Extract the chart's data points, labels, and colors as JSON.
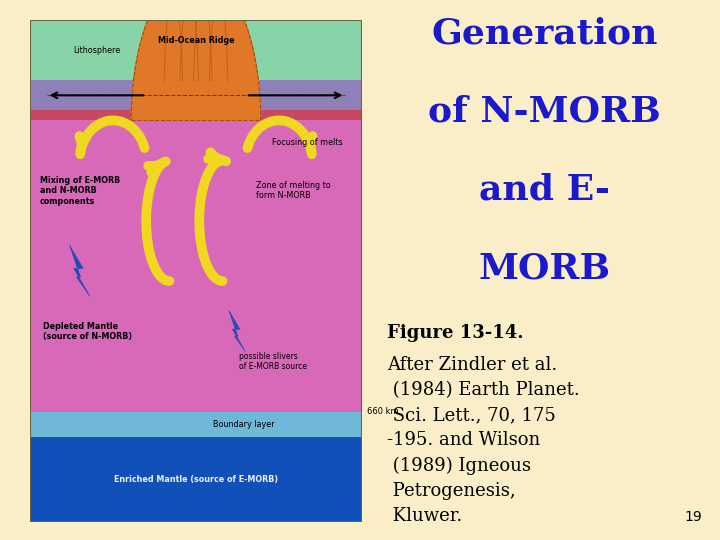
{
  "bg_color": "#faeec8",
  "title_lines": [
    "Generation",
    "of N-MORB",
    "and E-",
    "MORB"
  ],
  "title_color": "#1a1acc",
  "title_fontsize": 26,
  "caption_bold": "Figure 13-14.",
  "caption_text": "After Zindler et al.\n (1984) Earth Planet.\n Sci. Lett., 70, 175\n-195. and Wilson\n (1989) Igneous\n Petrogenesis,\n Kluwer.",
  "caption_fontsize": 13,
  "page_number": "19",
  "litho_color": "#88d4a8",
  "litho_top_color": "#c84860",
  "purple_layer_color": "#9080b8",
  "asthen_color": "#d868b8",
  "enriched_color": "#1050b8",
  "boundary_color": "#70b8d8",
  "ridge_color": "#e07828",
  "arrow_yellow": "#f0d820",
  "bolt_color": "#2848b8",
  "text_dark": "#101010",
  "text_white": "#f0f0ff"
}
